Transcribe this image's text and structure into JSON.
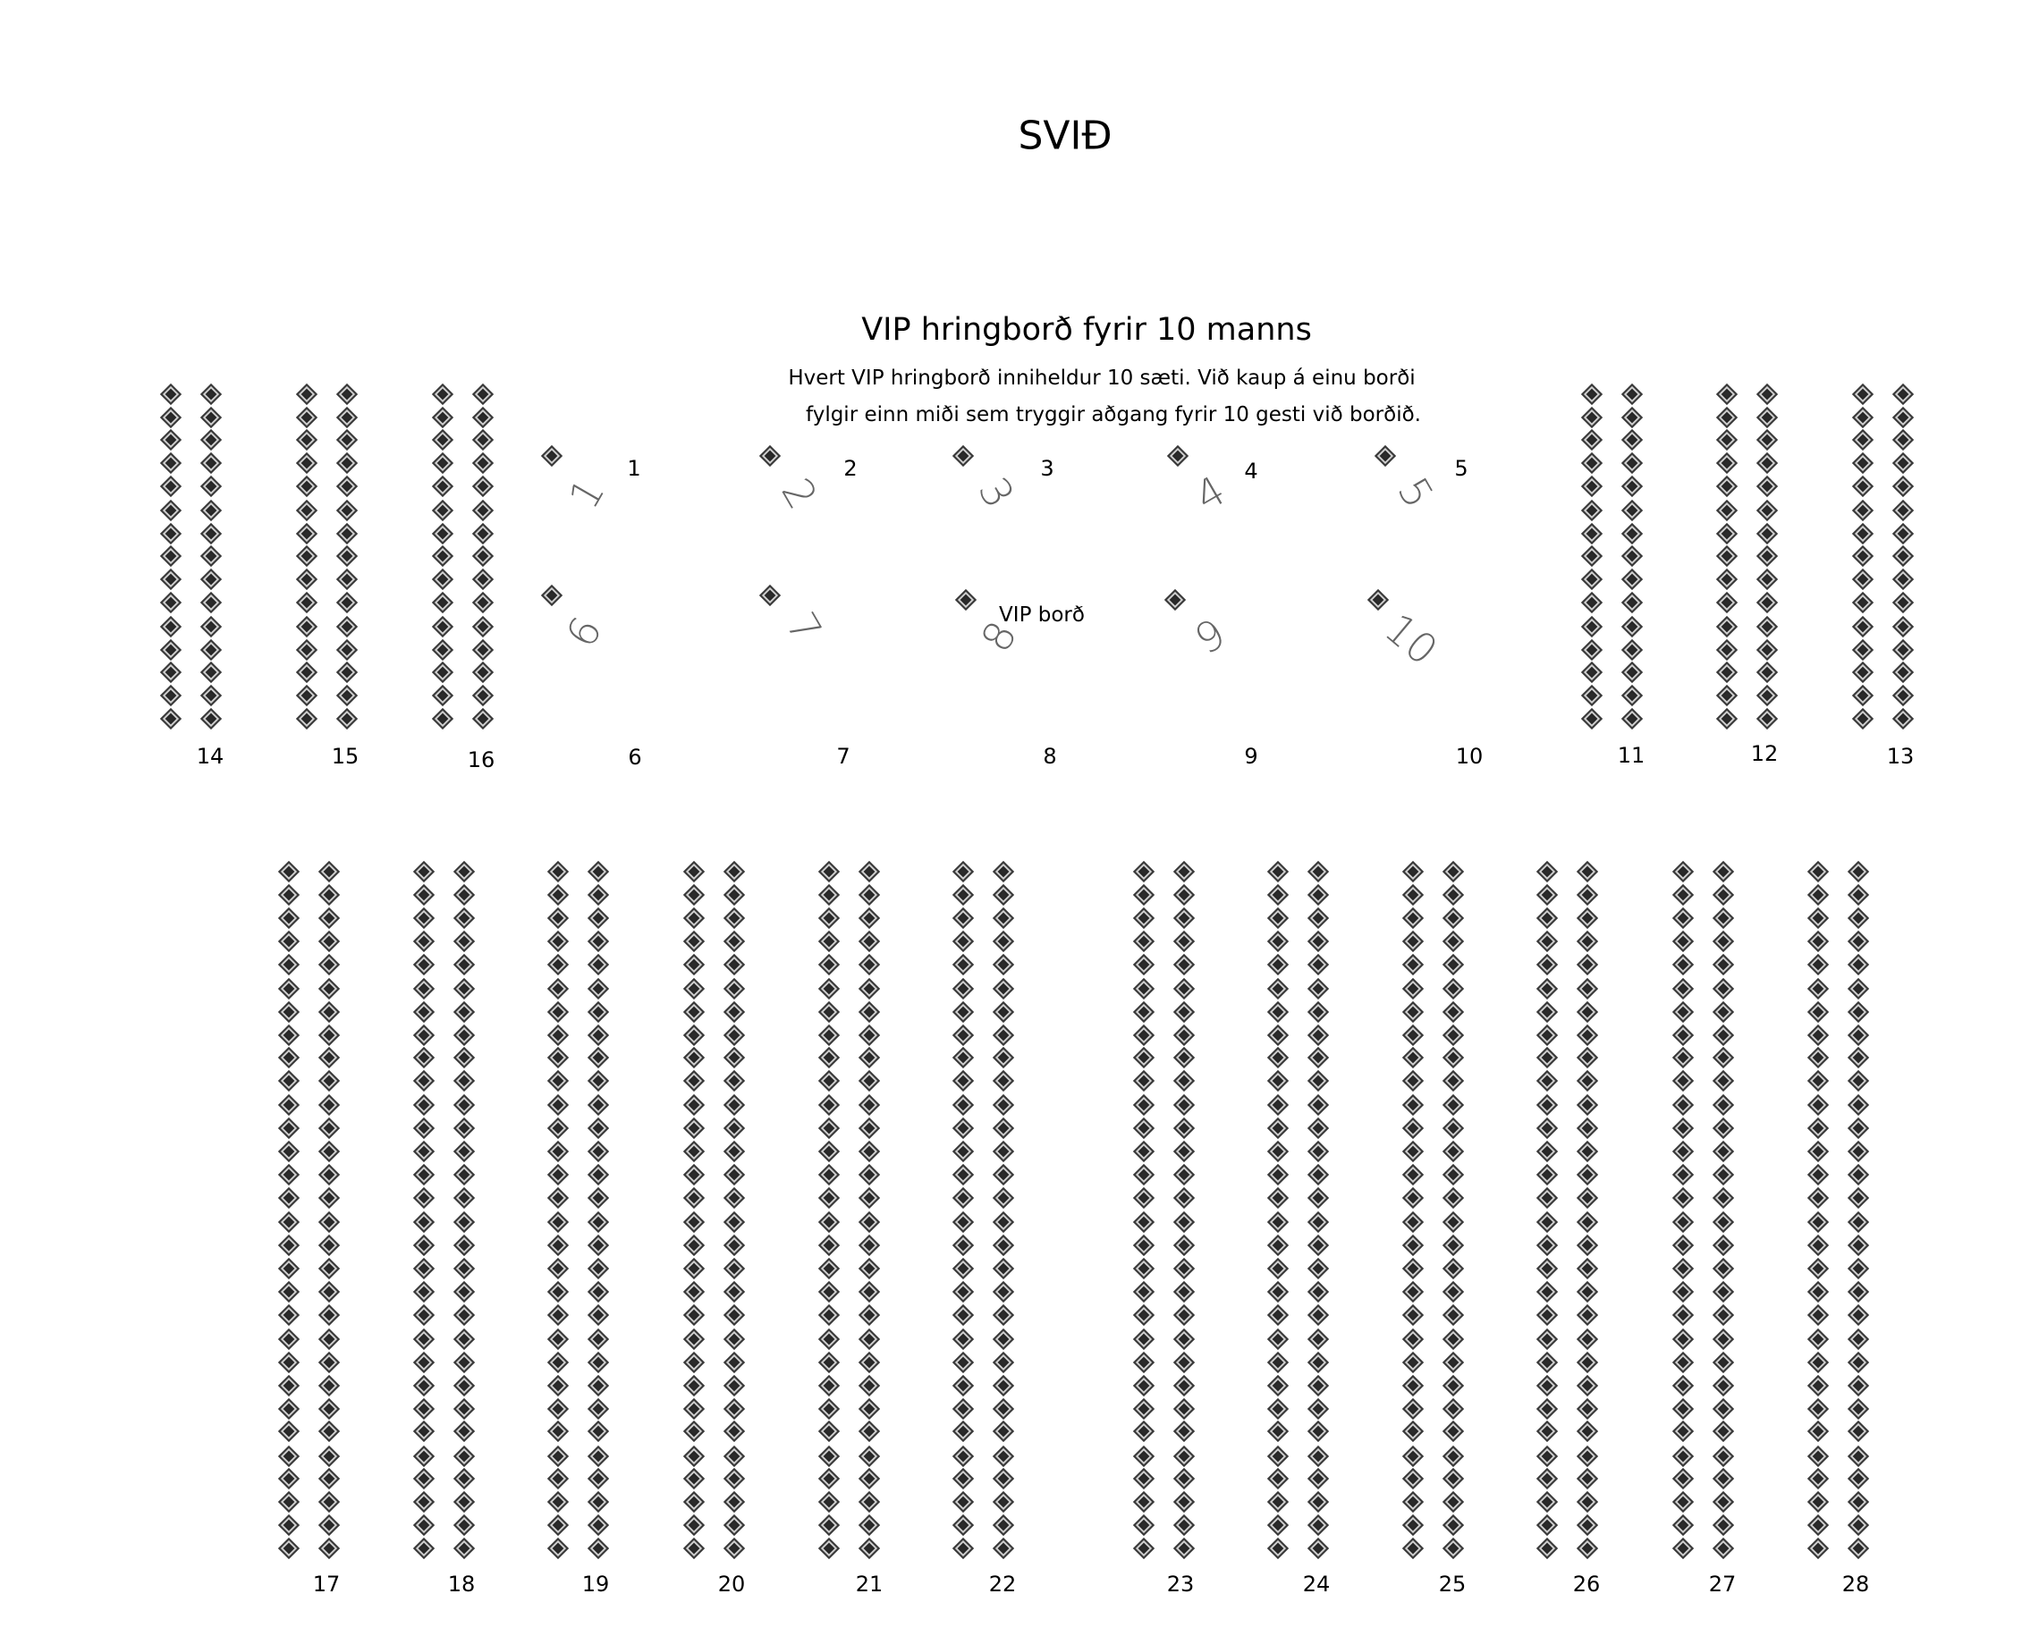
{
  "stage": {
    "title": "SVIÐ"
  },
  "vip": {
    "heading": "VIP hringborð fyrir 10 manns",
    "description": [
      "Hvert VIP hringborð inniheldur 10 sæti. Við kaup á einu borði",
      "fylgir einn miði sem tryggir aðgang fyrir 10 gesti við borðið."
    ],
    "table_label": "VIP borð",
    "table_numbers": [
      "1",
      "2",
      "3",
      "4",
      "5",
      "6",
      "7",
      "8",
      "9",
      "10"
    ],
    "seat_labels": [
      "1",
      "2",
      "3",
      "4",
      "5",
      "6",
      "7",
      "8",
      "9",
      "10"
    ]
  },
  "sections_top": [
    {
      "label": "14",
      "rows": 15,
      "columns": 2
    },
    {
      "label": "15",
      "rows": 15,
      "columns": 2
    },
    {
      "label": "16",
      "rows": 15,
      "columns": 2
    },
    {
      "label": "11",
      "rows": 15,
      "columns": 2
    },
    {
      "label": "12",
      "rows": 15,
      "columns": 2
    },
    {
      "label": "13",
      "rows": 15,
      "columns": 2
    }
  ],
  "sections_bottom": [
    {
      "label": "17",
      "rows": 30,
      "columns": 2
    },
    {
      "label": "18",
      "rows": 30,
      "columns": 2
    },
    {
      "label": "19",
      "rows": 30,
      "columns": 2
    },
    {
      "label": "20",
      "rows": 30,
      "columns": 2
    },
    {
      "label": "21",
      "rows": 30,
      "columns": 2
    },
    {
      "label": "22",
      "rows": 30,
      "columns": 2
    },
    {
      "label": "23",
      "rows": 30,
      "columns": 2
    },
    {
      "label": "24",
      "rows": 30,
      "columns": 2
    },
    {
      "label": "25",
      "rows": 30,
      "columns": 2
    },
    {
      "label": "26",
      "rows": 30,
      "columns": 2
    },
    {
      "label": "27",
      "rows": 30,
      "columns": 2
    },
    {
      "label": "28",
      "rows": 30,
      "columns": 2
    }
  ],
  "colors": {
    "seat": "#2b2b2b",
    "handwritten_number": "#666666"
  }
}
